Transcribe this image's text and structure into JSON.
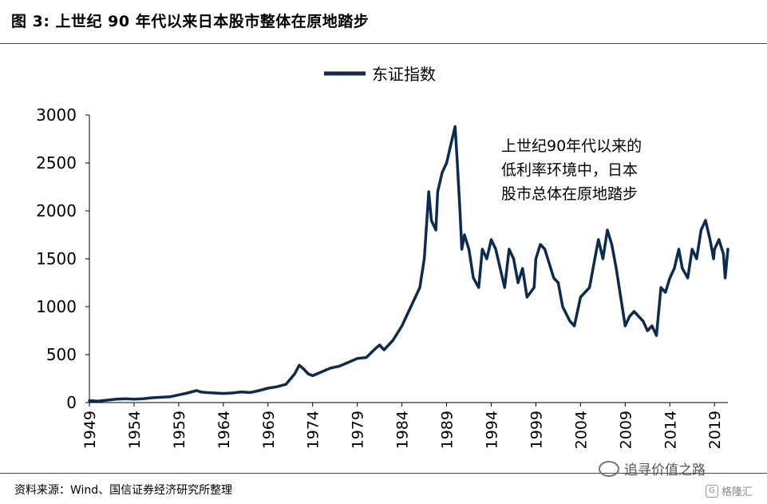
{
  "header": {
    "title": "图 3: 上世纪 90 年代以来日本股市整体在原地踏步"
  },
  "footer": {
    "source": "资料来源：Wind、国信证券经济研究所整理",
    "watermark": "追寻价值之路",
    "brand": "格隆汇"
  },
  "chart_data": {
    "type": "line",
    "title": "",
    "xlabel": "",
    "ylabel": "",
    "legend_position": "top-center",
    "grid": false,
    "ylim": [
      0,
      3000
    ],
    "xlim": [
      1949,
      2020.5
    ],
    "yticks": [
      0,
      500,
      1000,
      1500,
      2000,
      2500,
      3000
    ],
    "xticks": [
      "1949",
      "1954",
      "1959",
      "1964",
      "1969",
      "1974",
      "1979",
      "1984",
      "1989",
      "1994",
      "1999",
      "2004",
      "2009",
      "2014",
      "2019"
    ],
    "annotation": [
      "上世纪90年代以来的",
      "低利率环境中，日本",
      "股市总体在原地踏步"
    ],
    "series": [
      {
        "name": "东证指数",
        "color": "#0d2a52",
        "x": [
          1949,
          1950,
          1951,
          1952,
          1953,
          1954,
          1955,
          1956,
          1957,
          1958,
          1959,
          1960,
          1961,
          1961.5,
          1962,
          1963,
          1964,
          1965,
          1966,
          1967,
          1968,
          1969,
          1970,
          1971,
          1972,
          1972.5,
          1973,
          1973.5,
          1974,
          1975,
          1976,
          1977,
          1978,
          1979,
          1980,
          1981,
          1981.5,
          1982,
          1983,
          1984,
          1985,
          1986,
          1986.5,
          1987,
          1987.3,
          1987.8,
          1988,
          1988.5,
          1989,
          1989.5,
          1989.95,
          1990.2,
          1990.5,
          1990.7,
          1991,
          1991.5,
          1992,
          1992.6,
          1993,
          1993.5,
          1994,
          1994.5,
          1995,
          1995.5,
          1996,
          1996.5,
          1997,
          1997.5,
          1998,
          1998.8,
          1999,
          1999.5,
          2000,
          2001,
          2001.5,
          2002,
          2002.8,
          2003.3,
          2004,
          2005,
          2005.8,
          2006,
          2006.5,
          2007,
          2007.5,
          2008,
          2008.5,
          2009,
          2009.5,
          2010,
          2010.5,
          2011,
          2011.5,
          2012,
          2012.5,
          2013,
          2013.5,
          2014,
          2014.5,
          2015,
          2015.4,
          2016,
          2016.5,
          2017,
          2017.5,
          2018,
          2018.5,
          2018.9,
          2019,
          2019.5,
          2020,
          2020.2,
          2020.5
        ],
        "y": [
          20,
          15,
          25,
          35,
          40,
          35,
          40,
          50,
          55,
          60,
          80,
          100,
          125,
          110,
          105,
          100,
          95,
          100,
          110,
          105,
          125,
          150,
          165,
          190,
          300,
          390,
          350,
          300,
          280,
          320,
          360,
          380,
          420,
          460,
          470,
          560,
          600,
          550,
          650,
          800,
          1000,
          1200,
          1500,
          2200,
          1900,
          1800,
          2200,
          2400,
          2500,
          2700,
          2880,
          2500,
          2000,
          1600,
          1750,
          1600,
          1300,
          1200,
          1600,
          1500,
          1700,
          1600,
          1400,
          1200,
          1600,
          1500,
          1250,
          1400,
          1100,
          1200,
          1500,
          1650,
          1600,
          1300,
          1250,
          1000,
          850,
          800,
          1100,
          1200,
          1600,
          1700,
          1500,
          1800,
          1650,
          1400,
          1100,
          800,
          900,
          950,
          900,
          850,
          750,
          800,
          700,
          1200,
          1150,
          1300,
          1400,
          1600,
          1400,
          1300,
          1600,
          1500,
          1800,
          1900,
          1700,
          1500,
          1600,
          1700,
          1550,
          1300,
          1600
        ]
      }
    ]
  }
}
